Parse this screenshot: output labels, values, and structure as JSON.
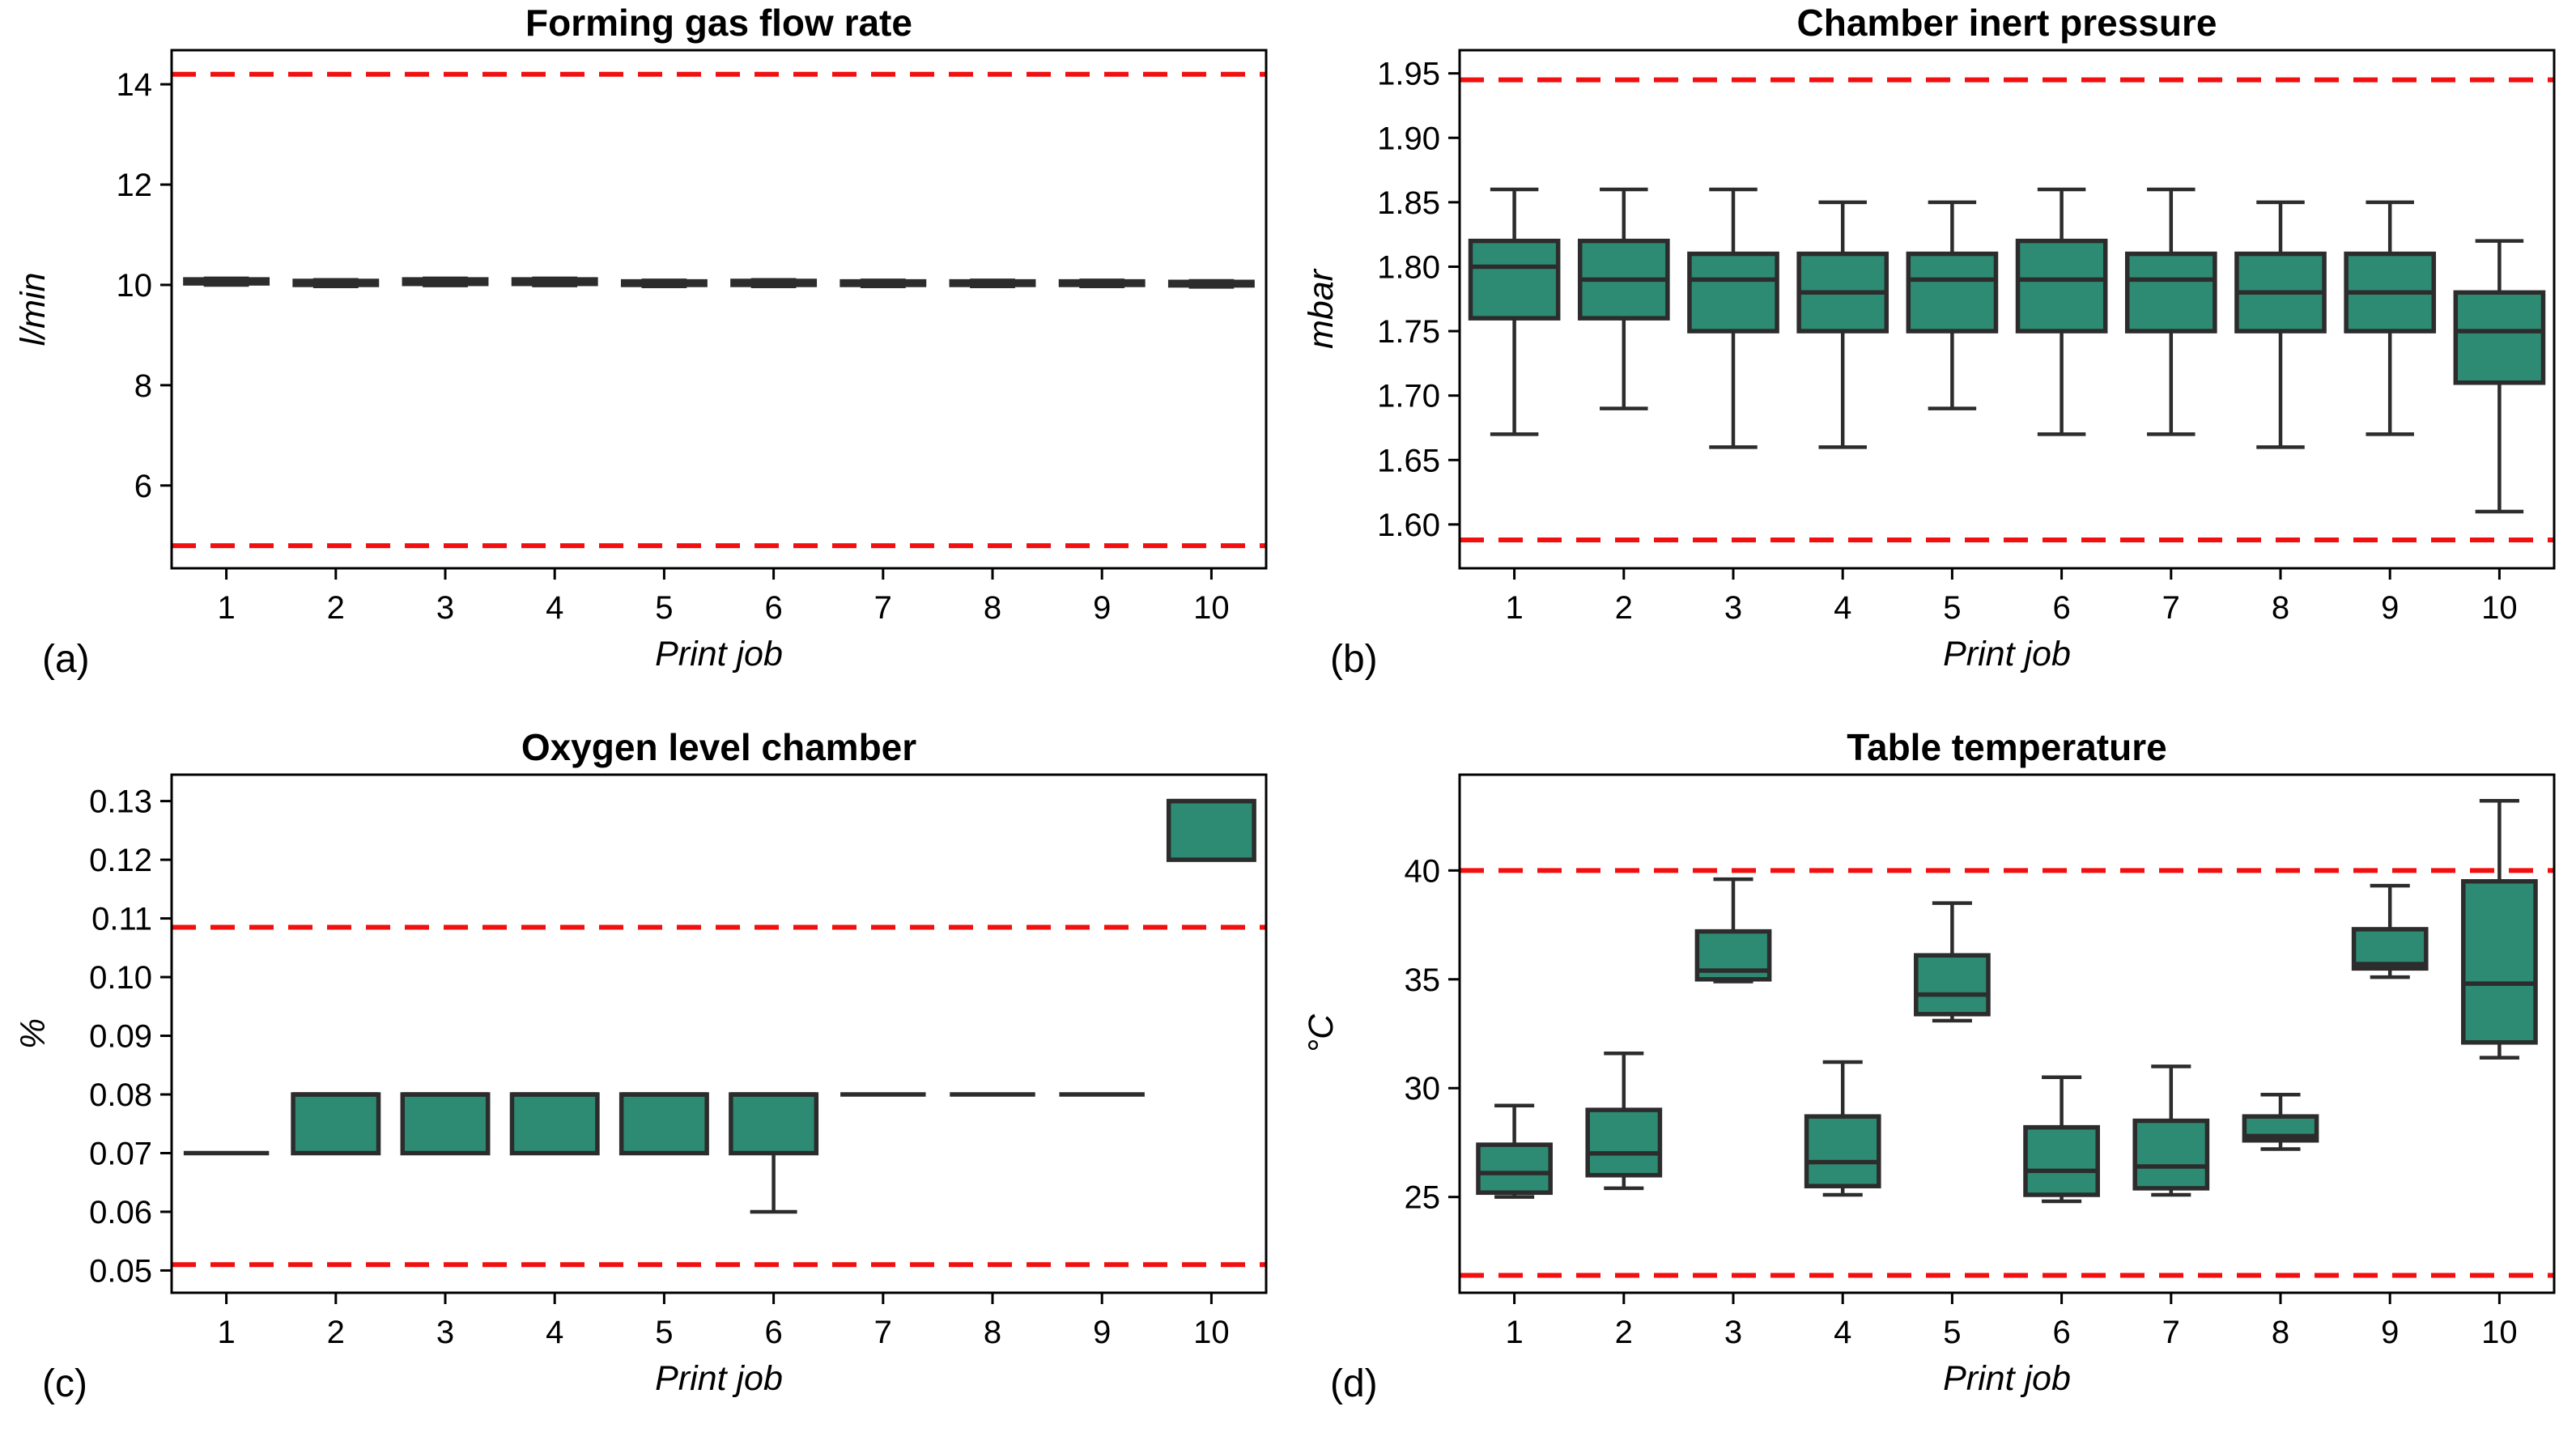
{
  "figure": {
    "background": "#ffffff",
    "colors": {
      "box_fill": "#2e8b73",
      "box_edge": "#2c2c2c",
      "whisker": "#2c2c2c",
      "median": "#2c2c2c",
      "limit_line": "#f20f0f",
      "axis": "#000000",
      "text": "#000000"
    }
  },
  "chart_data": [
    {
      "type": "box",
      "panel_label": "(a)",
      "title": "Forming gas flow rate",
      "xlabel": "Print job",
      "ylabel": "l/min",
      "categories": [
        "1",
        "2",
        "3",
        "4",
        "5",
        "6",
        "7",
        "8",
        "9",
        "10"
      ],
      "ytick_values": [
        6,
        8,
        10,
        12,
        14
      ],
      "ytick_labels": [
        "6",
        "8",
        "10",
        "12",
        "14"
      ],
      "ylim": [
        4.35,
        14.68
      ],
      "limit_lines": {
        "upper": 14.2,
        "lower": 4.8
      },
      "grid": false,
      "legend": "none",
      "box_width": 0.75,
      "boxes": [
        {
          "lo": 10.0,
          "q1": 10.03,
          "med": 10.07,
          "q3": 10.11,
          "hi": 10.13
        },
        {
          "lo": 9.97,
          "q1": 10.0,
          "med": 10.04,
          "q3": 10.08,
          "hi": 10.1
        },
        {
          "lo": 9.99,
          "q1": 10.02,
          "med": 10.06,
          "q3": 10.11,
          "hi": 10.13
        },
        {
          "lo": 9.99,
          "q1": 10.02,
          "med": 10.06,
          "q3": 10.11,
          "hi": 10.13
        },
        {
          "lo": 9.97,
          "q1": 10.0,
          "med": 10.03,
          "q3": 10.07,
          "hi": 10.09
        },
        {
          "lo": 9.97,
          "q1": 10.0,
          "med": 10.04,
          "q3": 10.08,
          "hi": 10.1
        },
        {
          "lo": 9.97,
          "q1": 10.0,
          "med": 10.03,
          "q3": 10.07,
          "hi": 10.09
        },
        {
          "lo": 9.97,
          "q1": 10.0,
          "med": 10.03,
          "q3": 10.07,
          "hi": 10.09
        },
        {
          "lo": 9.97,
          "q1": 10.0,
          "med": 10.03,
          "q3": 10.07,
          "hi": 10.09
        },
        {
          "lo": 9.96,
          "q1": 9.99,
          "med": 10.02,
          "q3": 10.06,
          "hi": 10.08
        }
      ]
    },
    {
      "type": "box",
      "panel_label": "(b)",
      "title": "Chamber inert pressure",
      "xlabel": "Print job",
      "ylabel": "mbar",
      "categories": [
        "1",
        "2",
        "3",
        "4",
        "5",
        "6",
        "7",
        "8",
        "9",
        "10"
      ],
      "ytick_values": [
        1.6,
        1.65,
        1.7,
        1.75,
        1.8,
        1.85,
        1.9,
        1.95
      ],
      "ytick_labels": [
        "1.60",
        "1.65",
        "1.70",
        "1.75",
        "1.80",
        "1.85",
        "1.90",
        "1.95"
      ],
      "ylim": [
        1.566,
        1.968
      ],
      "limit_lines": {
        "upper": 1.945,
        "lower": 1.588
      },
      "grid": false,
      "legend": "none",
      "box_width": 0.8,
      "boxes": [
        {
          "lo": 1.67,
          "q1": 1.76,
          "med": 1.8,
          "q3": 1.82,
          "hi": 1.86
        },
        {
          "lo": 1.69,
          "q1": 1.76,
          "med": 1.79,
          "q3": 1.82,
          "hi": 1.86
        },
        {
          "lo": 1.66,
          "q1": 1.75,
          "med": 1.79,
          "q3": 1.81,
          "hi": 1.86
        },
        {
          "lo": 1.66,
          "q1": 1.75,
          "med": 1.78,
          "q3": 1.81,
          "hi": 1.85
        },
        {
          "lo": 1.69,
          "q1": 1.75,
          "med": 1.79,
          "q3": 1.81,
          "hi": 1.85
        },
        {
          "lo": 1.67,
          "q1": 1.75,
          "med": 1.79,
          "q3": 1.82,
          "hi": 1.86
        },
        {
          "lo": 1.67,
          "q1": 1.75,
          "med": 1.79,
          "q3": 1.81,
          "hi": 1.86
        },
        {
          "lo": 1.66,
          "q1": 1.75,
          "med": 1.78,
          "q3": 1.81,
          "hi": 1.85
        },
        {
          "lo": 1.67,
          "q1": 1.75,
          "med": 1.78,
          "q3": 1.81,
          "hi": 1.85
        },
        {
          "lo": 1.61,
          "q1": 1.71,
          "med": 1.75,
          "q3": 1.78,
          "hi": 1.82
        }
      ]
    },
    {
      "type": "box",
      "panel_label": "(c)",
      "title": "Oxygen level chamber",
      "xlabel": "Print job",
      "ylabel": "%",
      "categories": [
        "1",
        "2",
        "3",
        "4",
        "5",
        "6",
        "7",
        "8",
        "9",
        "10"
      ],
      "ytick_values": [
        0.05,
        0.06,
        0.07,
        0.08,
        0.09,
        0.1,
        0.11,
        0.12,
        0.13
      ],
      "ytick_labels": [
        "0.05",
        "0.06",
        "0.07",
        "0.08",
        "0.09",
        "0.10",
        "0.11",
        "0.12",
        "0.13"
      ],
      "ylim": [
        0.0462,
        0.1345
      ],
      "limit_lines": {
        "upper": 0.1085,
        "lower": 0.051
      },
      "grid": false,
      "legend": "none",
      "box_width": 0.78,
      "boxes": [
        {
          "lo": 0.07,
          "q1": 0.07,
          "med": 0.07,
          "q3": 0.07,
          "hi": 0.07
        },
        {
          "lo": 0.07,
          "q1": 0.07,
          "med": 0.08,
          "q3": 0.08,
          "hi": 0.08
        },
        {
          "lo": 0.07,
          "q1": 0.07,
          "med": 0.08,
          "q3": 0.08,
          "hi": 0.08
        },
        {
          "lo": 0.07,
          "q1": 0.07,
          "med": 0.08,
          "q3": 0.08,
          "hi": 0.08
        },
        {
          "lo": 0.07,
          "q1": 0.07,
          "med": 0.08,
          "q3": 0.08,
          "hi": 0.08
        },
        {
          "lo": 0.06,
          "q1": 0.07,
          "med": 0.08,
          "q3": 0.08,
          "hi": 0.08
        },
        {
          "lo": 0.08,
          "q1": 0.08,
          "med": 0.08,
          "q3": 0.08,
          "hi": 0.08
        },
        {
          "lo": 0.08,
          "q1": 0.08,
          "med": 0.08,
          "q3": 0.08,
          "hi": 0.08
        },
        {
          "lo": 0.08,
          "q1": 0.08,
          "med": 0.08,
          "q3": 0.08,
          "hi": 0.08
        },
        {
          "lo": 0.12,
          "q1": 0.12,
          "med": 0.13,
          "q3": 0.13,
          "hi": 0.13
        }
      ]
    },
    {
      "type": "box",
      "panel_label": "(d)",
      "title": "Table temperature",
      "xlabel": "Print job",
      "ylabel": "°C",
      "categories": [
        "1",
        "2",
        "3",
        "4",
        "5",
        "6",
        "7",
        "8",
        "9",
        "10"
      ],
      "ytick_values": [
        25,
        30,
        35,
        40
      ],
      "ytick_labels": [
        "25",
        "30",
        "35",
        "40"
      ],
      "ylim": [
        20.6,
        44.4
      ],
      "limit_lines": {
        "upper": 40.0,
        "lower": 21.4
      },
      "grid": false,
      "legend": "none",
      "box_width": 0.66,
      "boxes": [
        {
          "lo": 25.0,
          "q1": 25.2,
          "med": 26.1,
          "q3": 27.4,
          "hi": 29.2
        },
        {
          "lo": 25.4,
          "q1": 26.0,
          "med": 27.0,
          "q3": 29.0,
          "hi": 31.6
        },
        {
          "lo": 34.9,
          "q1": 35.0,
          "med": 35.4,
          "q3": 37.2,
          "hi": 39.6
        },
        {
          "lo": 25.1,
          "q1": 25.5,
          "med": 26.6,
          "q3": 28.7,
          "hi": 31.2
        },
        {
          "lo": 33.1,
          "q1": 33.4,
          "med": 34.3,
          "q3": 36.1,
          "hi": 38.5
        },
        {
          "lo": 24.8,
          "q1": 25.1,
          "med": 26.2,
          "q3": 28.2,
          "hi": 30.5
        },
        {
          "lo": 25.1,
          "q1": 25.4,
          "med": 26.4,
          "q3": 28.5,
          "hi": 31.0
        },
        {
          "lo": 27.2,
          "q1": 27.6,
          "med": 27.8,
          "q3": 28.7,
          "hi": 29.7
        },
        {
          "lo": 35.1,
          "q1": 35.5,
          "med": 35.7,
          "q3": 37.3,
          "hi": 39.3
        },
        {
          "lo": 31.4,
          "q1": 32.1,
          "med": 34.8,
          "q3": 39.5,
          "hi": 43.2
        }
      ]
    }
  ]
}
